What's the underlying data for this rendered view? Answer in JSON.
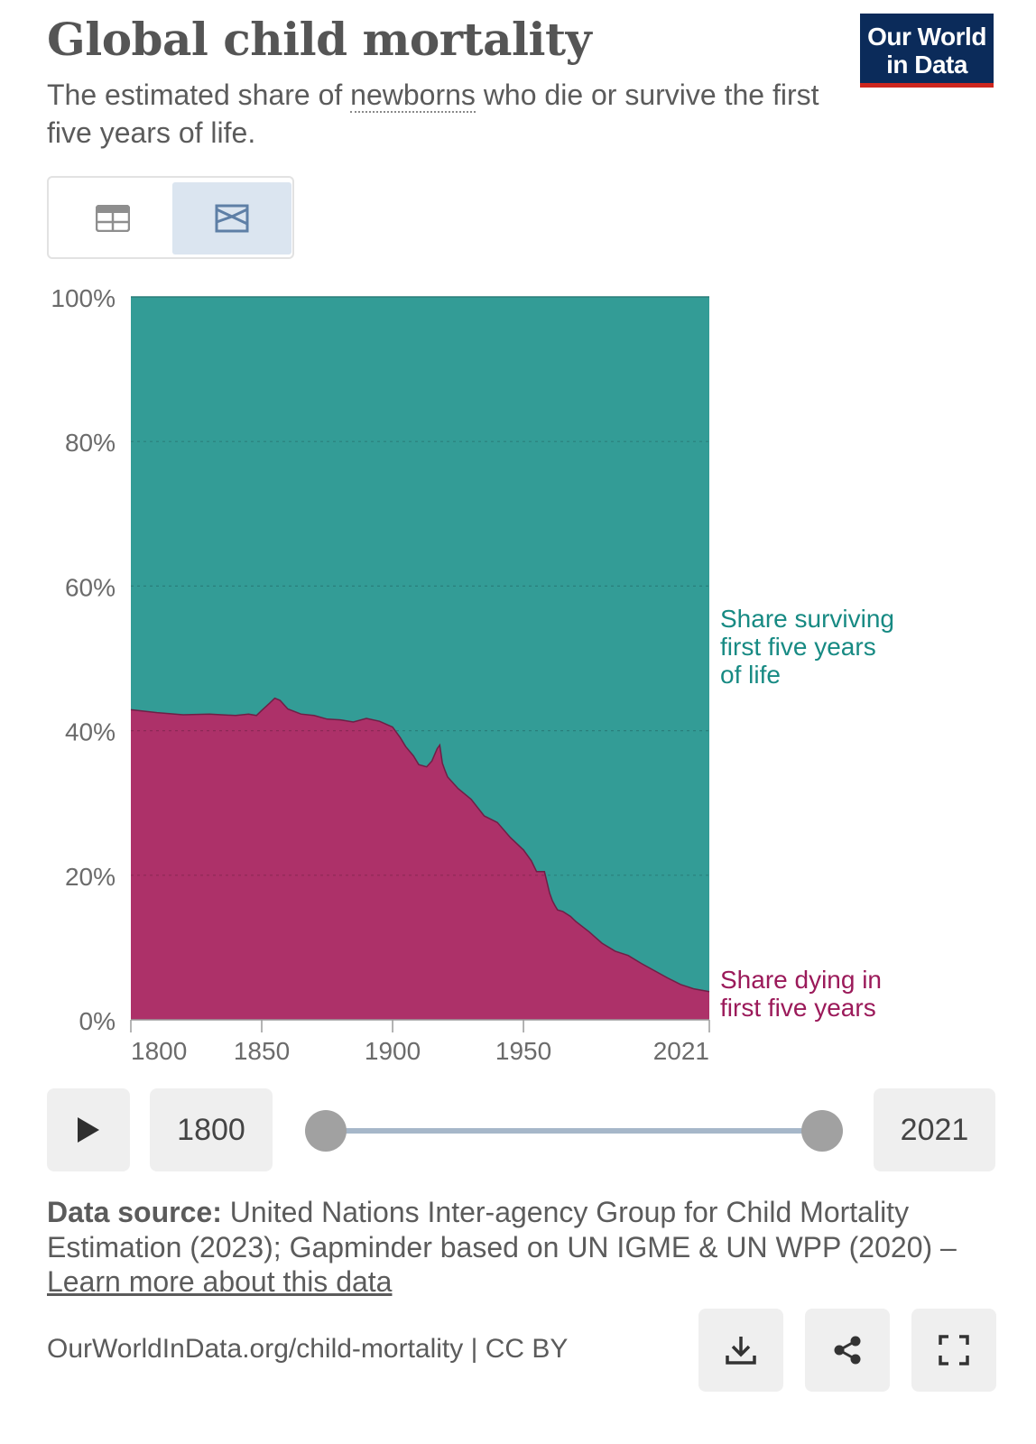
{
  "header": {
    "title": "Global child mortality",
    "subtitle_before": "The estimated share of ",
    "subtitle_link": "newborns",
    "subtitle_after": " who die or survive the first five years of life.",
    "logo_line1": "Our World",
    "logo_line2": "in Data"
  },
  "tabs": [
    {
      "icon": "table-icon",
      "active": false
    },
    {
      "icon": "stacked-area-chart-icon",
      "active": true
    }
  ],
  "colors": {
    "surviving": "#339c96",
    "dying": "#ad3169",
    "surviving_label": "#178a83",
    "dying_label": "#9b1a5a"
  },
  "chart_data": {
    "type": "area",
    "stacked": true,
    "y_unit": "%",
    "ylim": [
      0,
      100
    ],
    "y_ticks": [
      "0%",
      "20%",
      "40%",
      "60%",
      "80%",
      "100%"
    ],
    "x_ticks": [
      "1800",
      "1850",
      "1900",
      "1950",
      "2021"
    ],
    "xlim": [
      1800,
      2021
    ],
    "grid": "horizontal dashed",
    "series": [
      {
        "name": "Share dying in first five years",
        "color": "#ad3169",
        "x": [
          1800,
          1810,
          1820,
          1830,
          1840,
          1845,
          1848,
          1850,
          1853,
          1855,
          1857,
          1860,
          1865,
          1870,
          1875,
          1880,
          1885,
          1890,
          1895,
          1900,
          1903,
          1905,
          1908,
          1910,
          1913,
          1915,
          1917,
          1918,
          1919,
          1920,
          1921,
          1925,
          1930,
          1935,
          1940,
          1945,
          1950,
          1953,
          1955,
          1958,
          1960,
          1961,
          1962,
          1963,
          1965,
          1968,
          1970,
          1975,
          1980,
          1985,
          1990,
          1995,
          2000,
          2005,
          2010,
          2015,
          2021
        ],
        "values": [
          42.9,
          42.5,
          42.2,
          42.3,
          42.1,
          42.3,
          42.1,
          42.8,
          43.8,
          44.5,
          44.2,
          43.0,
          42.3,
          42.1,
          41.6,
          41.5,
          41.2,
          41.7,
          41.3,
          40.5,
          39.0,
          37.8,
          36.5,
          35.3,
          35.0,
          35.8,
          37.5,
          38.0,
          35.5,
          34.5,
          33.6,
          32.0,
          30.5,
          28.2,
          27.3,
          25.2,
          23.5,
          22.0,
          20.5,
          20.5,
          17.5,
          16.5,
          15.8,
          15.2,
          15.0,
          14.3,
          13.6,
          12.2,
          10.6,
          9.5,
          8.9,
          7.8,
          6.8,
          5.8,
          4.9,
          4.3,
          3.9
        ]
      },
      {
        "name": "Share surviving first five years of life",
        "color": "#339c96",
        "note": "fills remainder to 100%"
      }
    ]
  },
  "labels": {
    "surviving": [
      "Share surviving",
      "first five years",
      "of life"
    ],
    "dying": [
      "Share dying in",
      "first five years"
    ]
  },
  "timeline": {
    "start_year": "1800",
    "end_year": "2021",
    "range_start_fraction": 0,
    "range_end_fraction": 1
  },
  "footer": {
    "source_label": "Data source:",
    "source_text": " United Nations Inter-agency Group for Child Mortality Estimation (2023); Gapminder based on UN IGME & UN WPP (2020) – ",
    "source_link": "Learn more about this data",
    "url": "OurWorldInData.org/child-mortality | CC BY"
  },
  "actions": [
    "download-icon",
    "share-icon",
    "fullscreen-icon"
  ]
}
